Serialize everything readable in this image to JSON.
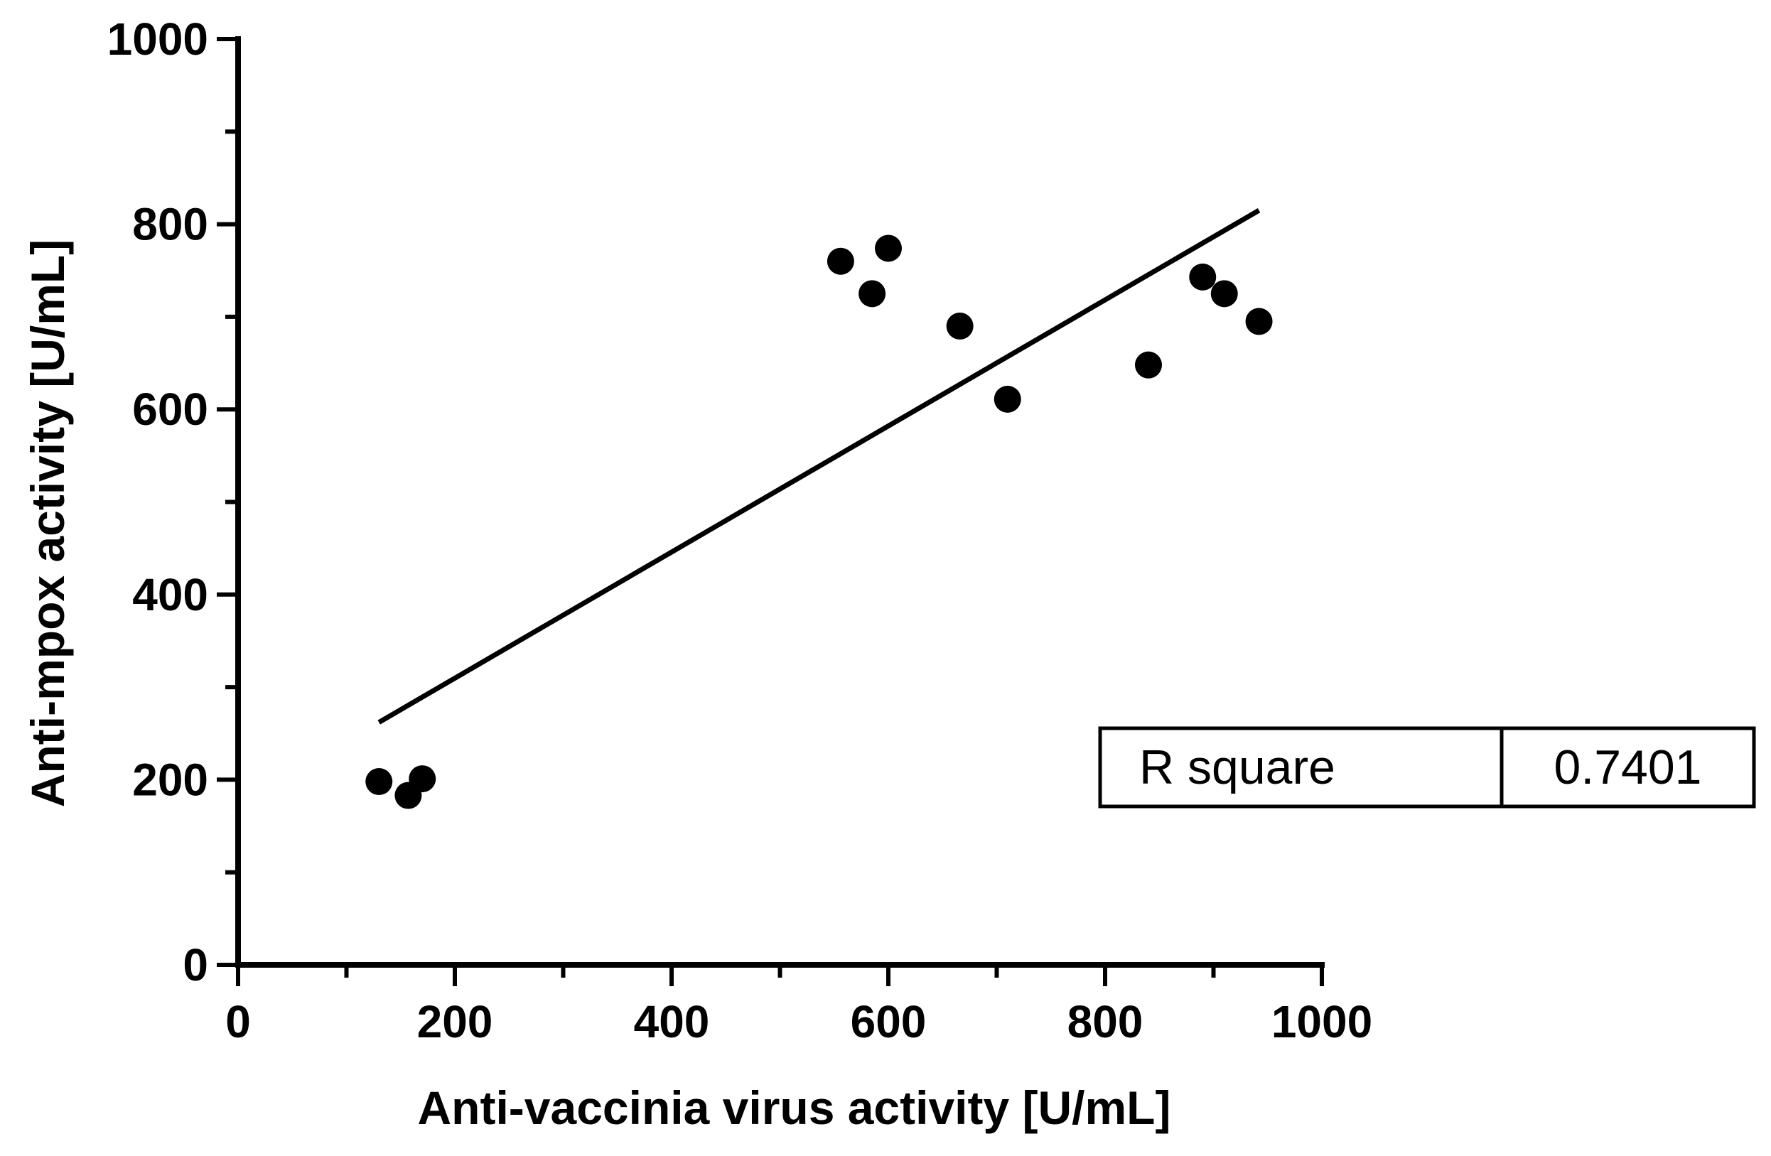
{
  "chart_data": {
    "type": "scatter",
    "title": "",
    "xlabel": "Anti-vaccinia virus activity [U/mL]",
    "ylabel": "Anti-mpox activity [U/mL]",
    "xlim": [
      0,
      1000
    ],
    "ylim": [
      0,
      1000
    ],
    "x_ticks": [
      0,
      200,
      400,
      600,
      800,
      1000
    ],
    "y_ticks": [
      0,
      200,
      400,
      600,
      800,
      1000
    ],
    "x_tick_labels": [
      "0",
      "200",
      "400",
      "600",
      "800",
      "1000"
    ],
    "y_tick_labels": [
      "0",
      "200",
      "400",
      "600",
      "800",
      "1000"
    ],
    "grid": false,
    "series": [
      {
        "points": [
          {
            "x": 130,
            "y": 198
          },
          {
            "x": 157,
            "y": 183
          },
          {
            "x": 170,
            "y": 201
          },
          {
            "x": 556,
            "y": 760
          },
          {
            "x": 585,
            "y": 725
          },
          {
            "x": 600,
            "y": 774
          },
          {
            "x": 666,
            "y": 690
          },
          {
            "x": 710,
            "y": 611
          },
          {
            "x": 840,
            "y": 648
          },
          {
            "x": 890,
            "y": 743
          },
          {
            "x": 910,
            "y": 725
          },
          {
            "x": 942,
            "y": 695
          }
        ]
      }
    ],
    "fit_line": {
      "x1": 130,
      "y1": 262,
      "x2": 942,
      "y2": 815
    },
    "annotation": {
      "label": "R square",
      "value": "0.7401"
    }
  }
}
